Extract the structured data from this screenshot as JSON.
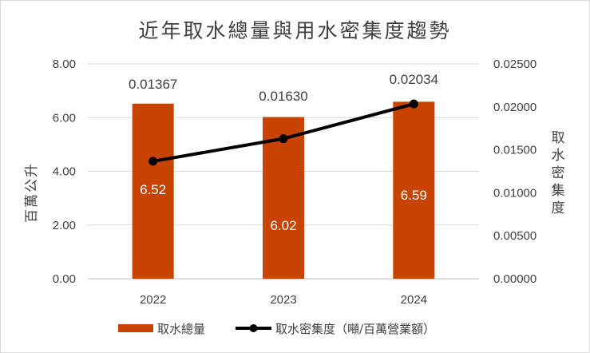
{
  "chart_data": {
    "type": "bar",
    "title": "近年取水總量與用水密集度趨勢",
    "categories": [
      "2022",
      "2023",
      "2024"
    ],
    "series": [
      {
        "name": "取水總量",
        "type": "bar",
        "axis": "left",
        "values": [
          6.52,
          6.02,
          6.59
        ],
        "data_labels": [
          "6.52",
          "6.02",
          "6.59"
        ],
        "color": "#C84300"
      },
      {
        "name": "取水密集度（噸/百萬營業額）",
        "type": "line",
        "axis": "right",
        "values": [
          0.01367,
          0.0163,
          0.02034
        ],
        "data_labels": [
          "0.01367",
          "0.01630",
          "0.02034"
        ],
        "color": "#000000"
      }
    ],
    "ylabel": "百萬公升",
    "ylim": [
      0,
      8
    ],
    "yticks": [
      "0.00",
      "2.00",
      "4.00",
      "6.00",
      "8.00"
    ],
    "y2label": "取水密集度",
    "y2lim": [
      0,
      0.025
    ],
    "y2ticks": [
      "0.00000",
      "0.00500",
      "0.01000",
      "0.01500",
      "0.02000",
      "0.02500"
    ],
    "grid": true,
    "legend_position": "bottom"
  }
}
